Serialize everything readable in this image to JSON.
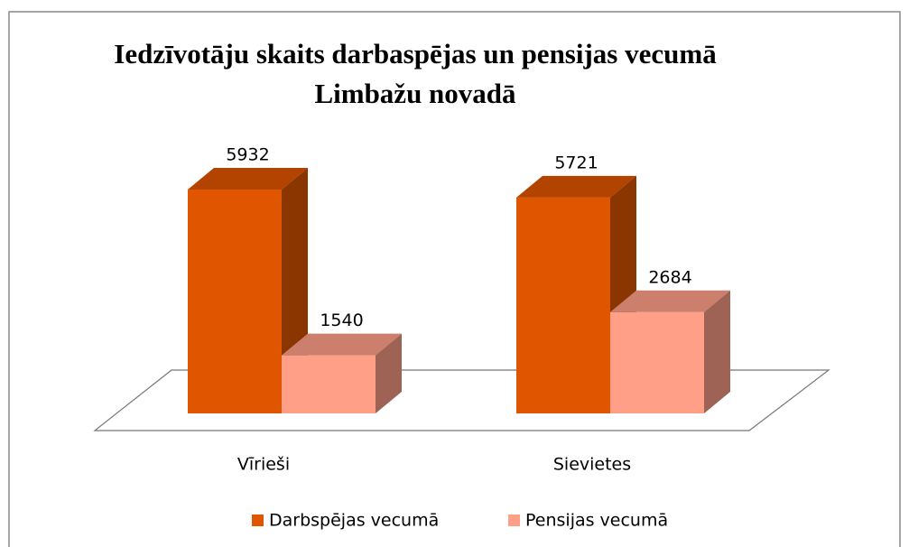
{
  "chart_data": {
    "type": "bar3d",
    "title": "Iedzīvotāju skaits darbaspējas un pensijas vecumā Limbažu novadā",
    "categories": [
      "Vīrieši",
      "Sievietes"
    ],
    "series": [
      {
        "name": "Darbspējas vecumā",
        "color": "#e05500",
        "values": [
          5932,
          5721
        ]
      },
      {
        "name": "Pensijas vecumā",
        "color": "#ff9f88",
        "values": [
          1540,
          2684
        ]
      }
    ]
  }
}
